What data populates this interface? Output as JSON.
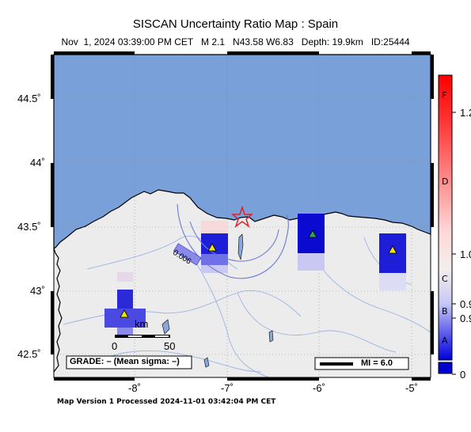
{
  "title": "SISCAN Uncertainty Ratio Map : Spain",
  "subtitle": {
    "datetime": "Nov  1, 2024 03:39:00 PM CET",
    "magnitude": "M 2.1",
    "location": "N43.58 W6.83",
    "depth": "Depth: 19.9km",
    "id": "ID:25444"
  },
  "latitude_labels": [
    "44.5˚",
    "44˚",
    "43.5˚",
    "43˚",
    "42.5˚"
  ],
  "longitude_labels": [
    "-8˚",
    "-7˚",
    "-6˚",
    "-5˚"
  ],
  "contour_label": "0.006",
  "scale_bar": {
    "unit": "km",
    "start": "0",
    "end": "50"
  },
  "grade_box": "GRADE: – (Mean sigma: –)",
  "mi_legend": "MI = 6.0",
  "colorbar": {
    "letters": [
      "F",
      "D",
      "C",
      "B",
      "A"
    ],
    "values": [
      "1.2",
      "1.0",
      "0.9",
      "0.9",
      "0"
    ]
  },
  "footer": "Map Version 1 Processed 2024-11-01 03:42:04 PM CET",
  "colors": {
    "ocean": "#7aa0da",
    "land": "#ececec",
    "epicenter": "#e0202a",
    "station": "#f2e600",
    "station_green": "#2ea84a",
    "cell_dark": "#1a1ad8",
    "cell_mid": "#5a5ae8",
    "cell_light": "#c8c8f0"
  }
}
